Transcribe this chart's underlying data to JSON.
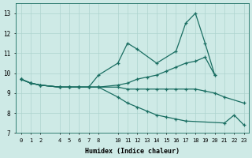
{
  "xlabel": "Humidex (Indice chaleur)",
  "background_color": "#ceeae6",
  "grid_color": "#aed4ce",
  "line_color": "#1a6e62",
  "xlim": [
    -0.5,
    23.5
  ],
  "ylim": [
    7,
    13.5
  ],
  "xticks": [
    0,
    1,
    2,
    4,
    5,
    6,
    7,
    8,
    10,
    11,
    12,
    13,
    14,
    15,
    16,
    17,
    18,
    19,
    20,
    21,
    22,
    23
  ],
  "yticks": [
    7,
    8,
    9,
    10,
    11,
    12,
    13
  ],
  "series": [
    {
      "x": [
        0,
        1,
        2,
        4,
        5,
        6,
        7,
        8,
        10,
        11,
        12,
        13,
        14,
        15,
        16,
        17,
        18,
        19,
        20
      ],
      "y": [
        9.7,
        9.5,
        9.4,
        9.3,
        9.3,
        9.3,
        9.3,
        9.3,
        9.4,
        9.5,
        9.7,
        9.8,
        9.9,
        10.1,
        10.3,
        10.5,
        10.6,
        10.8,
        9.9
      ]
    },
    {
      "x": [
        0,
        1,
        2,
        4,
        5,
        6,
        7,
        8,
        10,
        11,
        12,
        14,
        16,
        17,
        18,
        19,
        20
      ],
      "y": [
        9.7,
        9.5,
        9.4,
        9.3,
        9.3,
        9.3,
        9.3,
        9.9,
        10.5,
        11.5,
        11.2,
        10.5,
        11.1,
        12.5,
        13.0,
        11.5,
        9.9
      ]
    },
    {
      "x": [
        0,
        1,
        2,
        4,
        5,
        6,
        7,
        8,
        10,
        11,
        12,
        13,
        14,
        15,
        16,
        17,
        18,
        19,
        20,
        21,
        23
      ],
      "y": [
        9.7,
        9.5,
        9.4,
        9.3,
        9.3,
        9.3,
        9.3,
        9.3,
        9.3,
        9.2,
        9.2,
        9.2,
        9.2,
        9.2,
        9.2,
        9.2,
        9.2,
        9.1,
        9.0,
        8.8,
        8.5
      ]
    },
    {
      "x": [
        0,
        1,
        2,
        4,
        5,
        6,
        7,
        8,
        10,
        11,
        12,
        13,
        14,
        15,
        16,
        17,
        21,
        22,
        23
      ],
      "y": [
        9.7,
        9.5,
        9.4,
        9.3,
        9.3,
        9.3,
        9.3,
        9.3,
        8.8,
        8.5,
        8.3,
        8.1,
        7.9,
        7.8,
        7.7,
        7.6,
        7.5,
        7.9,
        7.4
      ]
    }
  ]
}
